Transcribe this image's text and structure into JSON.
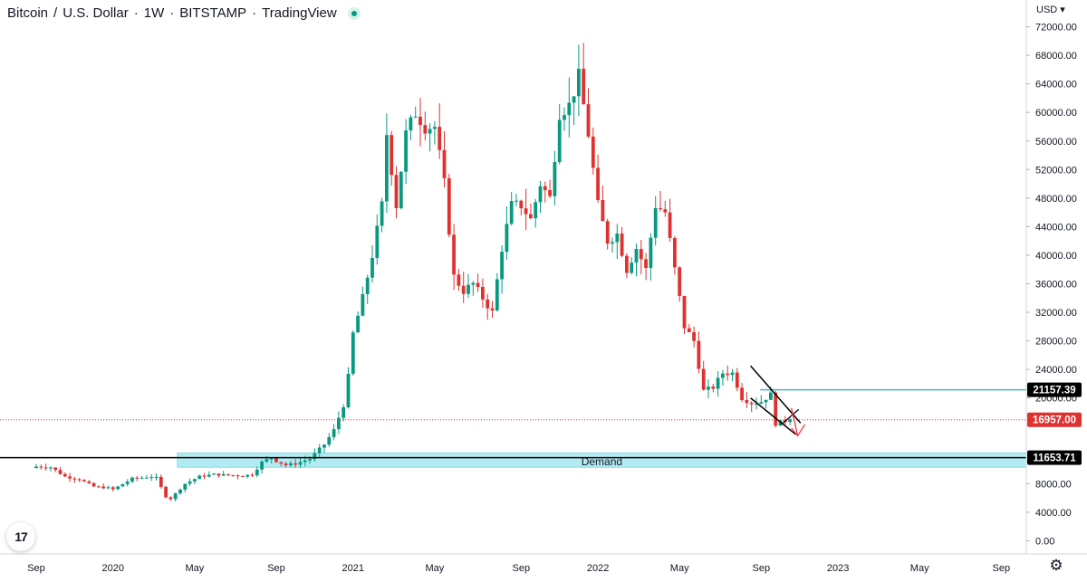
{
  "header": {
    "symbol": "Bitcoin",
    "pair": "U.S. Dollar",
    "interval": "1W",
    "exchange": "BITSTAMP",
    "platform": "TradingView",
    "separator_slash": "/",
    "separator_dot": "·"
  },
  "currency_selector": "USD",
  "logo": "17",
  "icons": {
    "logo": "tradingview-logo-icon",
    "settings": "gear-icon",
    "status": "market-status-icon"
  },
  "colors": {
    "up": "#089981",
    "down": "#e03131",
    "demand_fill": "#b2ebf2",
    "demand_line": "#80deea",
    "line": "#000000",
    "price_tag_bg": "#e03131",
    "level_tag_bg": "#000000",
    "arrow": "#f23645"
  },
  "chart_data": {
    "type": "candlestick",
    "title": "Bitcoin / U.S. Dollar · 1W · BITSTAMP · TradingView",
    "ylim": [
      0,
      74000
    ],
    "y_ticks": [
      "72000.00",
      "68000.00",
      "64000.00",
      "60000.00",
      "56000.00",
      "52000.00",
      "48000.00",
      "44000.00",
      "40000.00",
      "36000.00",
      "32000.00",
      "28000.00",
      "24000.00",
      "20000.00",
      "8000.00",
      "4000.00",
      "0.00"
    ],
    "x_labels": [
      "Sep",
      "2020",
      "May",
      "Sep",
      "2021",
      "May",
      "Sep",
      "2022",
      "May",
      "Sep",
      "2023",
      "May",
      "Sep"
    ],
    "x_label_weeks": [
      0,
      16,
      33,
      50,
      66,
      83,
      101,
      117,
      134,
      151,
      167,
      184,
      201
    ],
    "current_price": "16957.00",
    "resistance_level": "21157.39",
    "support_level": "11653.71",
    "demand_zone": {
      "label": "Demand",
      "top": 12300,
      "bottom": 10300
    },
    "anchors": [
      [
        0,
        10400
      ],
      [
        3,
        10300
      ],
      [
        6,
        9000
      ],
      [
        9,
        8600
      ],
      [
        12,
        7600
      ],
      [
        15,
        7400
      ],
      [
        16,
        7200
      ],
      [
        20,
        8700
      ],
      [
        24,
        9000
      ],
      [
        25,
        8800
      ],
      [
        27,
        6200
      ],
      [
        28,
        5900
      ],
      [
        31,
        8000
      ],
      [
        34,
        9000
      ],
      [
        37,
        9300
      ],
      [
        40,
        9200
      ],
      [
        43,
        9100
      ],
      [
        45,
        9300
      ],
      [
        47,
        11000
      ],
      [
        49,
        11700
      ],
      [
        50,
        11200
      ],
      [
        52,
        10600
      ],
      [
        54,
        10800
      ],
      [
        57,
        11500
      ],
      [
        60,
        13500
      ],
      [
        62,
        15500
      ],
      [
        64,
        19000
      ],
      [
        65,
        23000
      ],
      [
        66,
        29000
      ],
      [
        68,
        34000
      ],
      [
        70,
        40000
      ],
      [
        72,
        47000
      ],
      [
        73,
        57000
      ],
      [
        75,
        47000
      ],
      [
        77,
        57000
      ],
      [
        79,
        60000
      ],
      [
        81,
        58000
      ],
      [
        83,
        58000
      ],
      [
        85,
        50000
      ],
      [
        87,
        37000
      ],
      [
        89,
        35000
      ],
      [
        91,
        36000
      ],
      [
        93,
        34000
      ],
      [
        95,
        32000
      ],
      [
        97,
        41000
      ],
      [
        99,
        47000
      ],
      [
        101,
        47000
      ],
      [
        103,
        45000
      ],
      [
        105,
        50000
      ],
      [
        107,
        48000
      ],
      [
        109,
        60000
      ],
      [
        111,
        61000
      ],
      [
        113,
        65000
      ],
      [
        115,
        57000
      ],
      [
        117,
        47000
      ],
      [
        119,
        42000
      ],
      [
        121,
        43000
      ],
      [
        123,
        38000
      ],
      [
        125,
        41000
      ],
      [
        127,
        38000
      ],
      [
        129,
        47000
      ],
      [
        131,
        46000
      ],
      [
        133,
        38000
      ],
      [
        135,
        30000
      ],
      [
        137,
        28000
      ],
      [
        139,
        21000
      ],
      [
        141,
        21500
      ],
      [
        143,
        23500
      ],
      [
        145,
        23500
      ],
      [
        147,
        20000
      ],
      [
        149,
        19300
      ],
      [
        151,
        19500
      ],
      [
        153,
        20500
      ],
      [
        154,
        16400
      ],
      [
        156,
        16800
      ],
      [
        157,
        17000
      ]
    ]
  }
}
